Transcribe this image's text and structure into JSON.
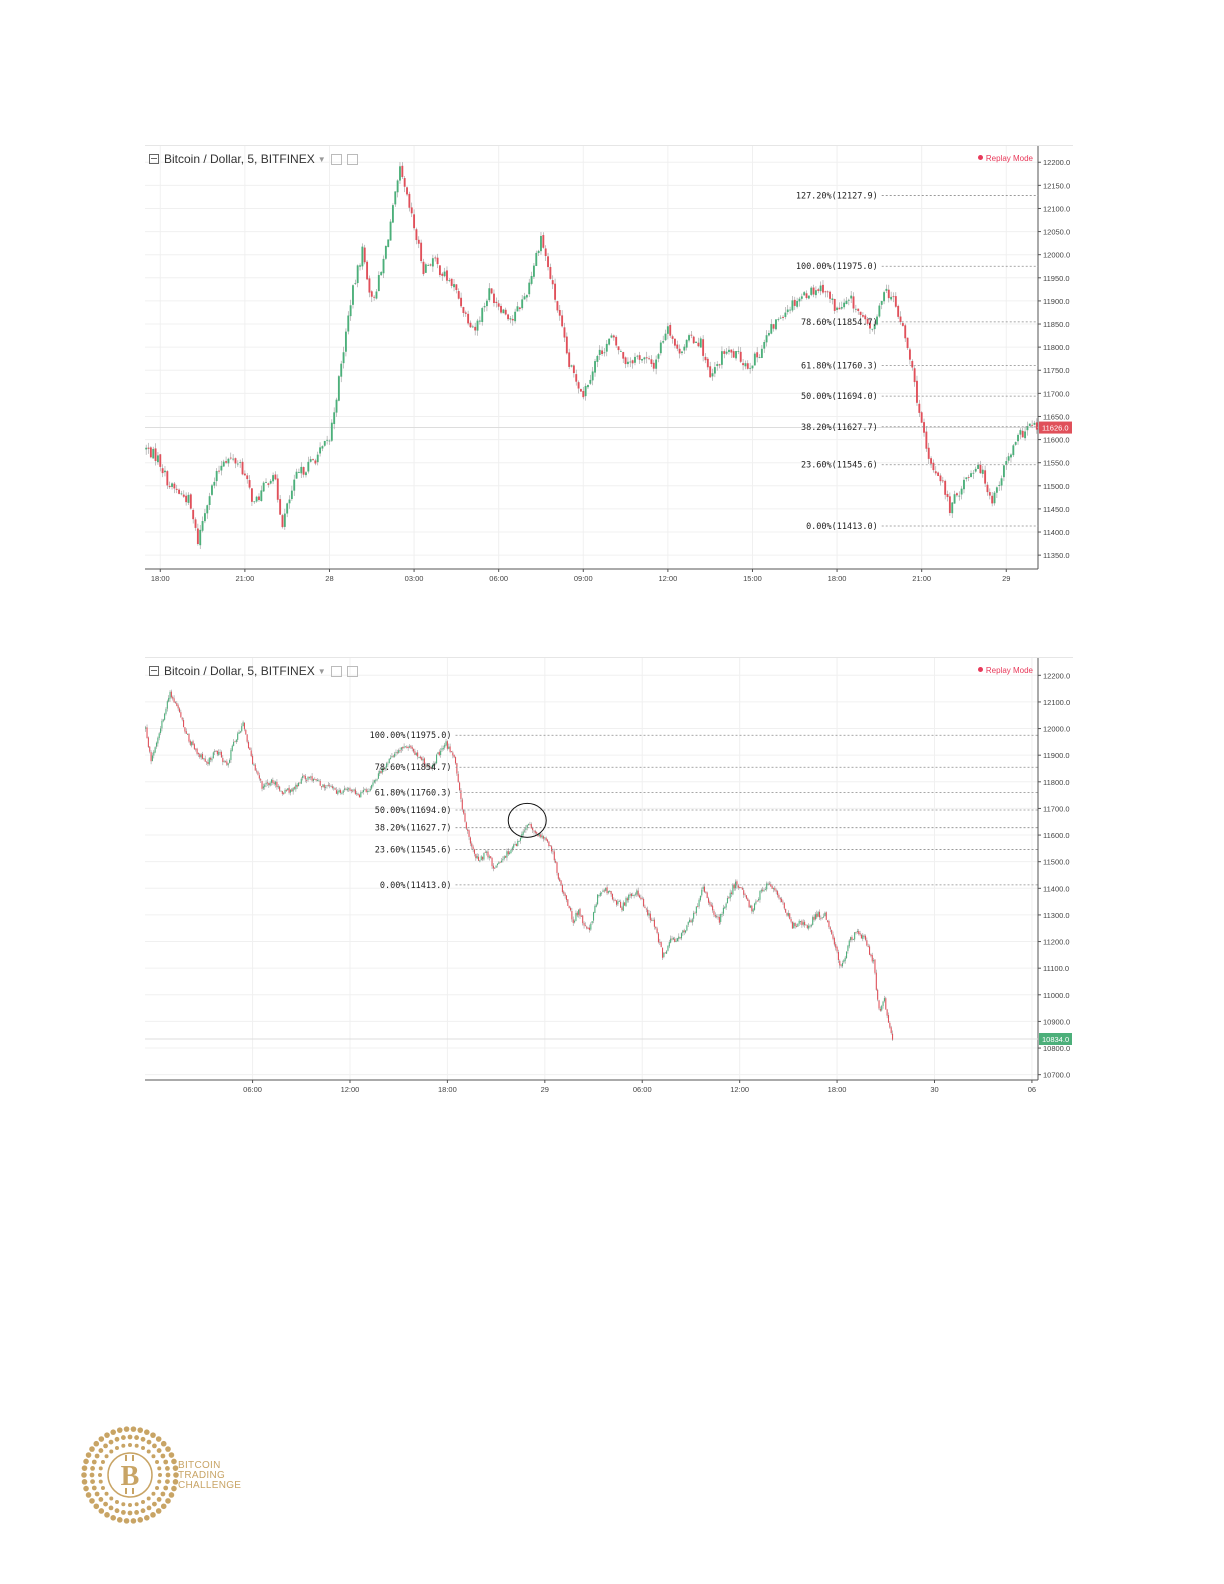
{
  "charts": [
    {
      "symbol": "Bitcoin / Dollar, 5, BITFINEX",
      "mode": "Replay Mode",
      "colors": {
        "up": "#4caf7a",
        "down": "#e0505a",
        "wick": "#999999",
        "grid": "#f0f0f0",
        "fib": "#8c8c8c"
      }
    },
    {
      "symbol": "Bitcoin / Dollar, 5, BITFINEX",
      "mode": "Replay Mode",
      "colors": {
        "up": "#4caf7a",
        "down": "#e0505a",
        "wick": "#999999",
        "grid": "#f0f0f0",
        "fib": "#8c8c8c"
      }
    }
  ],
  "chart_data": [
    {
      "type": "candlestick",
      "title": "Bitcoin / Dollar, 5, BITFINEX",
      "ylim": [
        11320,
        12220
      ],
      "y_ticks": [
        "12200.0",
        "12150.0",
        "12100.0",
        "12050.0",
        "12000.0",
        "11950.0",
        "11900.0",
        "11850.0",
        "11800.0",
        "11750.0",
        "11700.0",
        "11650.0",
        "11600.0",
        "11550.0",
        "11500.0",
        "11450.0",
        "11400.0",
        "11350.0"
      ],
      "y_tick_values": [
        12200,
        12150,
        12100,
        12050,
        12000,
        11950,
        11900,
        11850,
        11800,
        11750,
        11700,
        11650,
        11600,
        11550,
        11500,
        11450,
        11400,
        11350
      ],
      "x_ticks": [
        "18:00",
        "21:00",
        "28",
        "03:00",
        "06:00",
        "09:00",
        "12:00",
        "15:00",
        "18:00",
        "21:00",
        "29"
      ],
      "x_tick_index": [
        6,
        42,
        78,
        114,
        150,
        186,
        222,
        258,
        294,
        330,
        366
      ],
      "bar_count": 380,
      "price_line": {
        "value": 11626.0,
        "label": "11626.0",
        "color": "#e0505a"
      },
      "fib_levels": [
        {
          "label": "127.20%(12127.9)",
          "value": 12127.9
        },
        {
          "label": "100.00%(11975.0)",
          "value": 11975.0
        },
        {
          "label": "78.60%(11854.7)",
          "value": 11854.7
        },
        {
          "label": "61.80%(11760.3)",
          "value": 11760.3
        },
        {
          "label": "50.00%(11694.0)",
          "value": 11694.0
        },
        {
          "label": "38.20%(11627.7)",
          "value": 11627.7
        },
        {
          "label": "23.60%(11545.6)",
          "value": 11545.6
        },
        {
          "label": "0.00%(11413.0)",
          "value": 11413.0
        }
      ],
      "fib_start_index": 313,
      "anchors": [
        [
          0,
          11580
        ],
        [
          5,
          11560
        ],
        [
          10,
          11500
        ],
        [
          18,
          11470
        ],
        [
          22,
          11380
        ],
        [
          26,
          11470
        ],
        [
          33,
          11560
        ],
        [
          40,
          11550
        ],
        [
          46,
          11460
        ],
        [
          54,
          11530
        ],
        [
          58,
          11420
        ],
        [
          64,
          11520
        ],
        [
          72,
          11560
        ],
        [
          78,
          11600
        ],
        [
          83,
          11760
        ],
        [
          87,
          11900
        ],
        [
          92,
          12010
        ],
        [
          96,
          11900
        ],
        [
          100,
          11960
        ],
        [
          104,
          12070
        ],
        [
          108,
          12180
        ],
        [
          113,
          12080
        ],
        [
          118,
          11970
        ],
        [
          122,
          11990
        ],
        [
          126,
          11960
        ],
        [
          131,
          11930
        ],
        [
          136,
          11870
        ],
        [
          140,
          11840
        ],
        [
          146,
          11920
        ],
        [
          152,
          11880
        ],
        [
          156,
          11860
        ],
        [
          162,
          11920
        ],
        [
          168,
          12040
        ],
        [
          172,
          11950
        ],
        [
          176,
          11860
        ],
        [
          180,
          11760
        ],
        [
          186,
          11700
        ],
        [
          192,
          11780
        ],
        [
          198,
          11820
        ],
        [
          204,
          11770
        ],
        [
          210,
          11780
        ],
        [
          216,
          11760
        ],
        [
          222,
          11850
        ],
        [
          226,
          11790
        ],
        [
          232,
          11820
        ],
        [
          236,
          11810
        ],
        [
          240,
          11730
        ],
        [
          246,
          11790
        ],
        [
          252,
          11780
        ],
        [
          256,
          11760
        ],
        [
          260,
          11780
        ],
        [
          265,
          11830
        ],
        [
          270,
          11870
        ],
        [
          276,
          11900
        ],
        [
          282,
          11920
        ],
        [
          288,
          11930
        ],
        [
          294,
          11880
        ],
        [
          300,
          11900
        ],
        [
          306,
          11850
        ],
        [
          310,
          11840
        ],
        [
          314,
          11930
        ],
        [
          318,
          11900
        ],
        [
          322,
          11840
        ],
        [
          326,
          11750
        ],
        [
          330,
          11630
        ],
        [
          333,
          11550
        ],
        [
          338,
          11520
        ],
        [
          342,
          11450
        ],
        [
          348,
          11510
        ],
        [
          354,
          11550
        ],
        [
          360,
          11470
        ],
        [
          366,
          11550
        ],
        [
          372,
          11610
        ],
        [
          376,
          11630
        ],
        [
          379,
          11626
        ]
      ]
    },
    {
      "type": "candlestick",
      "title": "Bitcoin / Dollar, 5, BITFINEX",
      "ylim": [
        10680,
        12250
      ],
      "y_ticks": [
        "12200.0",
        "12100.0",
        "12000.0",
        "11900.0",
        "11800.0",
        "11700.0",
        "11600.0",
        "11500.0",
        "11400.0",
        "11300.0",
        "11200.0",
        "11100.0",
        "11000.0",
        "10900.0",
        "10800.0",
        "10700.0"
      ],
      "y_tick_values": [
        12200,
        12100,
        12000,
        11900,
        11800,
        11700,
        11600,
        11500,
        11400,
        11300,
        11200,
        11100,
        11000,
        10900,
        10800,
        10700
      ],
      "x_ticks": [
        "06:00",
        "12:00",
        "18:00",
        "29",
        "06:00",
        "12:00",
        "18:00",
        "30",
        "06"
      ],
      "x_tick_index": [
        79,
        151,
        223,
        295,
        367,
        439,
        511,
        583,
        655
      ],
      "bar_count": 660,
      "candle_range": [
        0,
        552
      ],
      "price_line": {
        "value": 10834.0,
        "label": "10834.0",
        "color": "#4caf7a"
      },
      "fib_levels": [
        {
          "label": "100.00%(11975.0)",
          "value": 11975.0
        },
        {
          "label": "78.60%(11854.7)",
          "value": 11854.7
        },
        {
          "label": "61.80%(11760.3)",
          "value": 11760.3
        },
        {
          "label": "50.00%(11694.0)",
          "value": 11694.0
        },
        {
          "label": "38.20%(11627.7)",
          "value": 11627.7
        },
        {
          "label": "23.60%(11545.6)",
          "value": 11545.6
        },
        {
          "label": "0.00%(11413.0)",
          "value": 11413.0
        }
      ],
      "fib_start_index": 229,
      "highlight_index": 282,
      "anchors": [
        [
          0,
          12000
        ],
        [
          4,
          11880
        ],
        [
          10,
          11990
        ],
        [
          18,
          12130
        ],
        [
          24,
          12080
        ],
        [
          30,
          11980
        ],
        [
          36,
          11920
        ],
        [
          46,
          11870
        ],
        [
          52,
          11920
        ],
        [
          60,
          11860
        ],
        [
          66,
          11960
        ],
        [
          72,
          12020
        ],
        [
          78,
          11890
        ],
        [
          86,
          11780
        ],
        [
          94,
          11800
        ],
        [
          102,
          11760
        ],
        [
          110,
          11780
        ],
        [
          118,
          11820
        ],
        [
          126,
          11800
        ],
        [
          134,
          11780
        ],
        [
          142,
          11760
        ],
        [
          150,
          11780
        ],
        [
          158,
          11750
        ],
        [
          166,
          11780
        ],
        [
          172,
          11830
        ],
        [
          180,
          11880
        ],
        [
          188,
          11930
        ],
        [
          196,
          11920
        ],
        [
          204,
          11880
        ],
        [
          210,
          11850
        ],
        [
          216,
          11900
        ],
        [
          222,
          11940
        ],
        [
          228,
          11900
        ],
        [
          232,
          11760
        ],
        [
          236,
          11640
        ],
        [
          240,
          11570
        ],
        [
          246,
          11500
        ],
        [
          252,
          11540
        ],
        [
          258,
          11470
        ],
        [
          264,
          11510
        ],
        [
          270,
          11550
        ],
        [
          276,
          11580
        ],
        [
          282,
          11640
        ],
        [
          288,
          11610
        ],
        [
          294,
          11590
        ],
        [
          300,
          11550
        ],
        [
          306,
          11420
        ],
        [
          310,
          11360
        ],
        [
          316,
          11280
        ],
        [
          320,
          11320
        ],
        [
          324,
          11260
        ],
        [
          328,
          11240
        ],
        [
          334,
          11370
        ],
        [
          340,
          11400
        ],
        [
          346,
          11360
        ],
        [
          352,
          11330
        ],
        [
          358,
          11380
        ],
        [
          364,
          11380
        ],
        [
          370,
          11320
        ],
        [
          376,
          11260
        ],
        [
          382,
          11150
        ],
        [
          388,
          11200
        ],
        [
          394,
          11210
        ],
        [
          400,
          11260
        ],
        [
          406,
          11310
        ],
        [
          412,
          11400
        ],
        [
          418,
          11320
        ],
        [
          424,
          11280
        ],
        [
          430,
          11360
        ],
        [
          436,
          11420
        ],
        [
          442,
          11380
        ],
        [
          448,
          11320
        ],
        [
          454,
          11380
        ],
        [
          460,
          11420
        ],
        [
          466,
          11380
        ],
        [
          472,
          11330
        ],
        [
          478,
          11260
        ],
        [
          484,
          11270
        ],
        [
          490,
          11260
        ],
        [
          496,
          11300
        ],
        [
          502,
          11300
        ],
        [
          506,
          11250
        ],
        [
          510,
          11180
        ],
        [
          514,
          11100
        ],
        [
          520,
          11200
        ],
        [
          526,
          11240
        ],
        [
          532,
          11200
        ],
        [
          538,
          11120
        ],
        [
          542,
          10940
        ],
        [
          546,
          10980
        ],
        [
          550,
          10880
        ],
        [
          552,
          10834
        ]
      ]
    }
  ],
  "logo": {
    "lines": [
      "BITCOIN",
      "TRADING",
      "CHALLENGE"
    ],
    "color": "#c8a465"
  }
}
